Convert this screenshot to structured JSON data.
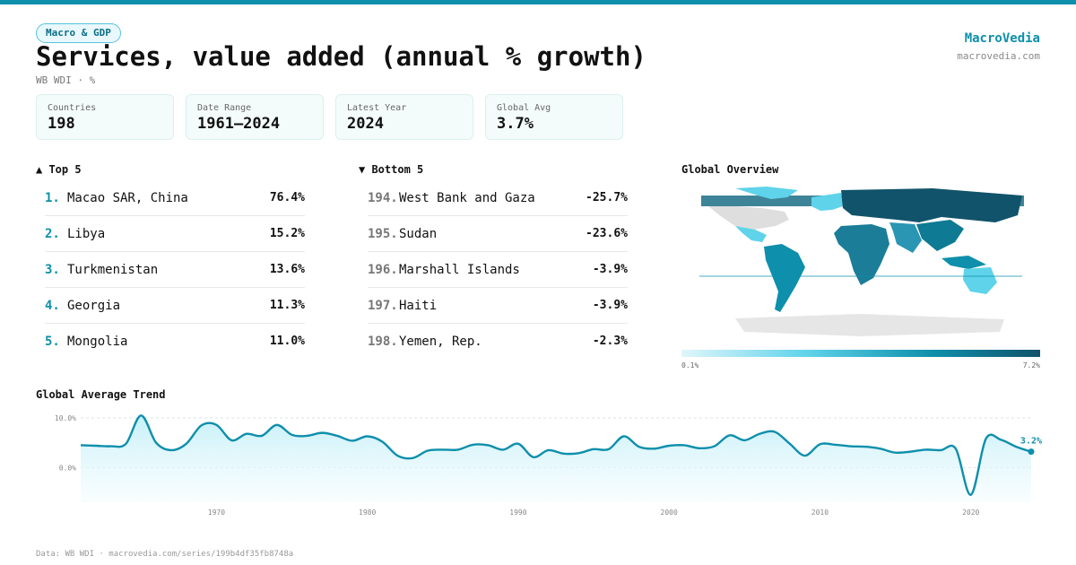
{
  "header": {
    "badge": "Macro & GDP",
    "title": "Services, value added (annual % growth)",
    "subtitle": "WB WDI · %",
    "brand": "MacroVedia",
    "brand_url": "macrovedia.com"
  },
  "stats": [
    {
      "label": "Countries",
      "value": "198"
    },
    {
      "label": "Date Range",
      "value": "1961–2024"
    },
    {
      "label": "Latest Year",
      "value": "2024"
    },
    {
      "label": "Global Avg",
      "value": "3.7%"
    }
  ],
  "top5": {
    "title": "▲ Top 5",
    "items": [
      {
        "rank": "1.",
        "name": "Macao SAR, China",
        "value": "76.4%"
      },
      {
        "rank": "2.",
        "name": "Libya",
        "value": "15.2%"
      },
      {
        "rank": "3.",
        "name": "Turkmenistan",
        "value": "13.6%"
      },
      {
        "rank": "4.",
        "name": "Georgia",
        "value": "11.3%"
      },
      {
        "rank": "5.",
        "name": "Mongolia",
        "value": "11.0%"
      }
    ]
  },
  "bottom5": {
    "title": "▼ Bottom 5",
    "items": [
      {
        "rank": "194.",
        "name": "West Bank and Gaza",
        "value": "-25.7%"
      },
      {
        "rank": "195.",
        "name": "Sudan",
        "value": "-23.6%"
      },
      {
        "rank": "196.",
        "name": "Marshall Islands",
        "value": "-3.9%"
      },
      {
        "rank": "197.",
        "name": "Haiti",
        "value": "-3.9%"
      },
      {
        "rank": "198.",
        "name": "Yemen, Rep.",
        "value": "-2.3%"
      }
    ]
  },
  "map": {
    "title": "Global Overview",
    "legend_min": "0.1%",
    "legend_max": "7.2%",
    "colors": [
      "#e0f6fb",
      "#5fd3ea",
      "#0e8fab",
      "#11536a"
    ]
  },
  "trend": {
    "title": "Global Average Trend",
    "last_label": "3.2%",
    "accent": "#0e8fab"
  },
  "footer": "Data: WB WDI · macrovedia.com/series/199b4df35fb8748a",
  "chart_data": {
    "type": "area",
    "title": "Global Average Trend",
    "x": [
      1961,
      1962,
      1963,
      1964,
      1965,
      1966,
      1967,
      1968,
      1969,
      1970,
      1971,
      1972,
      1973,
      1974,
      1975,
      1976,
      1977,
      1978,
      1979,
      1980,
      1981,
      1982,
      1983,
      1984,
      1985,
      1986,
      1987,
      1988,
      1989,
      1990,
      1991,
      1992,
      1993,
      1994,
      1995,
      1996,
      1997,
      1998,
      1999,
      2000,
      2001,
      2002,
      2003,
      2004,
      2005,
      2006,
      2007,
      2008,
      2009,
      2010,
      2011,
      2012,
      2013,
      2014,
      2015,
      2016,
      2017,
      2018,
      2019,
      2020,
      2021,
      2022,
      2023,
      2024
    ],
    "y": [
      4.5,
      4.4,
      4.3,
      4.8,
      10.5,
      5.0,
      3.5,
      4.8,
      8.5,
      8.6,
      5.5,
      6.8,
      6.4,
      8.6,
      6.6,
      6.4,
      7.0,
      6.4,
      5.4,
      6.3,
      5.2,
      2.4,
      1.9,
      3.4,
      3.6,
      3.6,
      4.6,
      4.5,
      3.6,
      4.8,
      2.1,
      3.5,
      2.8,
      2.9,
      3.7,
      3.7,
      6.3,
      4.2,
      3.8,
      4.4,
      4.5,
      3.9,
      4.3,
      6.5,
      5.5,
      6.8,
      7.2,
      4.8,
      2.4,
      4.7,
      4.6,
      4.3,
      4.2,
      3.8,
      3.0,
      3.2,
      3.6,
      3.5,
      3.8,
      -5.5,
      5.8,
      5.6,
      4.2,
      3.2
    ],
    "ylim": [
      -7,
      12
    ],
    "yticks": [
      "10.0%",
      "0.0%"
    ],
    "xticks": [
      "1970",
      "1980",
      "1990",
      "2000",
      "2010",
      "2020"
    ],
    "grid": true
  }
}
